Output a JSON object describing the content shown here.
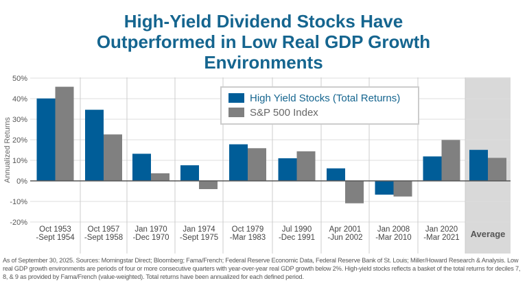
{
  "chart_data": {
    "type": "bar",
    "title": "High-Yield Dividend Stocks Have Outperformed in Low Real GDP Growth Environments",
    "ylabel": "Annualized Returns",
    "ylim": [
      -20,
      50
    ],
    "yticks": [
      "50%",
      "40%",
      "30%",
      "20%",
      "10%",
      "0%",
      "-10%",
      "-20%"
    ],
    "ytick_values": [
      50,
      40,
      30,
      20,
      10,
      0,
      -10,
      -20
    ],
    "grid": true,
    "legend_placement": "top-center",
    "categories": [
      [
        "Oct 1953",
        "-Sept 1954"
      ],
      [
        "Oct 1957",
        "-Sept 1958"
      ],
      [
        "Jan 1970",
        "-Dec 1970"
      ],
      [
        "Jan 1974",
        "-Sept 1975"
      ],
      [
        "Oct 1979",
        "-Mar 1983"
      ],
      [
        "Jul 1990",
        "-Dec 1991"
      ],
      [
        "Apr 2001",
        "-Jun 2002"
      ],
      [
        "Jan 2008",
        "-Mar 2010"
      ],
      [
        "Jan 2020",
        "-Mar 2021"
      ],
      [
        "Average"
      ]
    ],
    "series": [
      {
        "name": "High Yield Stocks (Total Returns)",
        "color": "#005d98",
        "values": [
          40.1,
          34.6,
          13.2,
          7.6,
          17.8,
          11.0,
          6.1,
          -6.7,
          11.9,
          15.1
        ]
      },
      {
        "name": "S&P 500 Index",
        "color": "#808080",
        "values": [
          45.8,
          22.6,
          3.7,
          -4.0,
          15.9,
          14.4,
          -10.9,
          -7.6,
          19.9,
          11.2
        ]
      }
    ],
    "highlight_color": "#d9d9d9"
  },
  "notes": "As of September 30, 2025. Sources: Morningstar Direct; Bloomberg; Fama/French; Federal Reserve Economic Data, Federal Reserve Bank of St. Louis; Miller/Howard Research & Analysis. Low real GDP growth environments are periods of four or more consecutive quarters with year-over-year real GDP growth below 2%. High-yield stocks reflects a basket of the total returns for deciles 7, 8, & 9 as provided by Fama/French (value-weighted). Total returns have been annualized for each defined period."
}
